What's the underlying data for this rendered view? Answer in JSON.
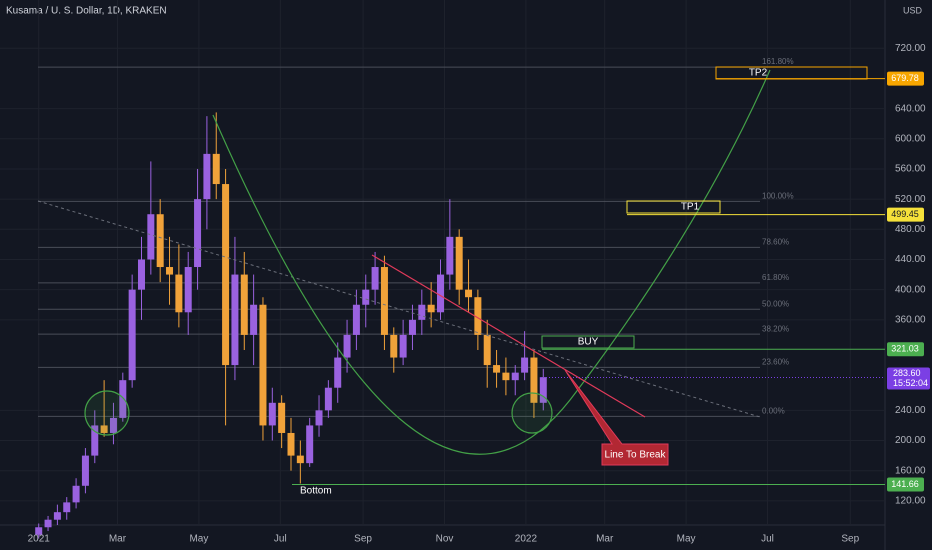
{
  "chart_data": {
    "type": "candlestick",
    "title": "Kusama / U. S. Dollar, 1D, KRAKEN",
    "currency": "USD",
    "up_color": "#9a62e0",
    "down_color": "#f0a23a",
    "xlim": [
      -29,
      634
    ],
    "ylim": [
      88,
      784
    ],
    "xticks": [
      {
        "value": 0,
        "label": "2021"
      },
      {
        "value": 59,
        "label": "Mar"
      },
      {
        "value": 120,
        "label": "May"
      },
      {
        "value": 181,
        "label": "Jul"
      },
      {
        "value": 243,
        "label": "Sep"
      },
      {
        "value": 304,
        "label": "Nov"
      },
      {
        "value": 365,
        "label": "2022"
      },
      {
        "value": 424,
        "label": "Mar"
      },
      {
        "value": 485,
        "label": "May"
      },
      {
        "value": 546,
        "label": "Jul"
      },
      {
        "value": 608,
        "label": "Sep"
      }
    ],
    "yticks": [
      {
        "value": 120,
        "label": "120.00"
      },
      {
        "value": 160,
        "label": "160.00"
      },
      {
        "value": 200,
        "label": "200.00"
      },
      {
        "value": 240,
        "label": "240.00"
      },
      {
        "value": 360,
        "label": "360.00"
      },
      {
        "value": 400,
        "label": "400.00"
      },
      {
        "value": 440,
        "label": "440.00"
      },
      {
        "value": 480,
        "label": "480.00"
      },
      {
        "value": 520,
        "label": "520.00"
      },
      {
        "value": 560,
        "label": "560.00"
      },
      {
        "value": 600,
        "label": "600.00"
      },
      {
        "value": 640,
        "label": "640.00"
      },
      {
        "value": 720,
        "label": "720.00"
      }
    ],
    "x": [
      0,
      7,
      14,
      21,
      28,
      35,
      42,
      49,
      56,
      63,
      70,
      77,
      84,
      91,
      98,
      105,
      112,
      119,
      126,
      133,
      140,
      147,
      154,
      161,
      168,
      175,
      182,
      189,
      196,
      203,
      210,
      217,
      224,
      231,
      238,
      245,
      252,
      259,
      266,
      273,
      280,
      287,
      294,
      301,
      308,
      315,
      322,
      329,
      336,
      343,
      350,
      357,
      364,
      371,
      378
    ],
    "open": [
      75,
      85,
      95,
      105,
      118,
      140,
      180,
      220,
      210,
      230,
      280,
      400,
      440,
      500,
      430,
      420,
      370,
      430,
      520,
      580,
      540,
      300,
      420,
      340,
      380,
      220,
      250,
      210,
      180,
      170,
      220,
      240,
      270,
      310,
      340,
      380,
      400,
      430,
      340,
      310,
      340,
      360,
      380,
      370,
      420,
      470,
      400,
      390,
      340,
      300,
      290,
      280,
      290,
      310,
      250
    ],
    "high": [
      90,
      100,
      115,
      125,
      150,
      190,
      240,
      280,
      250,
      290,
      420,
      470,
      570,
      520,
      470,
      460,
      450,
      560,
      630,
      635,
      560,
      470,
      450,
      420,
      390,
      270,
      260,
      230,
      200,
      230,
      260,
      280,
      330,
      360,
      400,
      420,
      450,
      445,
      350,
      360,
      380,
      400,
      410,
      440,
      520,
      480,
      440,
      400,
      360,
      320,
      310,
      300,
      345,
      320,
      295
    ],
    "low": [
      70,
      80,
      88,
      95,
      110,
      130,
      170,
      205,
      195,
      225,
      270,
      360,
      420,
      410,
      380,
      350,
      340,
      400,
      480,
      520,
      220,
      280,
      320,
      300,
      200,
      200,
      190,
      160,
      143,
      165,
      205,
      230,
      250,
      290,
      320,
      350,
      380,
      320,
      290,
      300,
      320,
      340,
      350,
      360,
      400,
      380,
      370,
      320,
      270,
      270,
      260,
      260,
      280,
      230,
      240
    ],
    "close": [
      85,
      95,
      105,
      118,
      140,
      180,
      220,
      210,
      230,
      280,
      400,
      440,
      500,
      430,
      420,
      370,
      430,
      520,
      580,
      540,
      300,
      420,
      340,
      380,
      220,
      250,
      210,
      180,
      170,
      220,
      240,
      270,
      310,
      340,
      380,
      400,
      430,
      340,
      310,
      340,
      360,
      380,
      370,
      420,
      470,
      400,
      390,
      340,
      300,
      290,
      280,
      290,
      310,
      250,
      284
    ],
    "fib_levels": [
      {
        "label": "161.80%",
        "price": 695
      },
      {
        "label": "100.00%",
        "price": 517
      },
      {
        "label": "78.60%",
        "price": 456
      },
      {
        "label": "61.80%",
        "price": 409
      },
      {
        "label": "50.00%",
        "price": 374
      },
      {
        "label": "38.20%",
        "price": 341
      },
      {
        "label": "23.60%",
        "price": 297
      },
      {
        "label": "0.00%",
        "price": 232
      }
    ],
    "levels": [
      {
        "price": 679.78,
        "color": "#f7a600"
      },
      {
        "price": 499.45,
        "color": "#f5e13a"
      },
      {
        "price": 321.03,
        "color": "#4caf50"
      },
      {
        "price": 141.66,
        "color": "#4caf50"
      }
    ],
    "current": {
      "price": 283.6,
      "label": "283.60",
      "countdown": "15:52:04",
      "color": "#7b3fe4"
    },
    "annotations": {
      "tp2": "TP2",
      "tp1": "TP1",
      "buy": "BUY",
      "bottom": "Bottom",
      "line_to_break": "Line To Break"
    }
  }
}
